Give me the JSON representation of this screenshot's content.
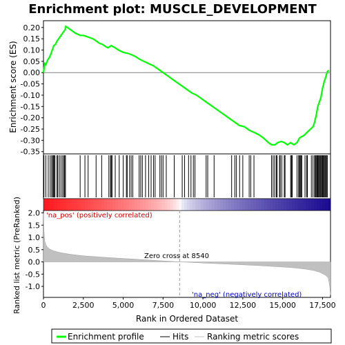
{
  "chart_data": [
    {
      "type": "line",
      "panel": "enrichment",
      "title": "Enrichment plot: MUSCLE_DEVELOPMENT",
      "ylabel": "Enrichment score (ES)",
      "ylim": [
        -0.36,
        0.23
      ],
      "yticks": [
        "0.20",
        "0.15",
        "0.10",
        "0.05",
        "0.00",
        "-0.05",
        "-0.10",
        "-0.15",
        "-0.20",
        "-0.25",
        "-0.30",
        "-0.35"
      ],
      "ytick_values": [
        0.2,
        0.15,
        0.1,
        0.05,
        0.0,
        -0.05,
        -0.1,
        -0.15,
        -0.2,
        -0.25,
        -0.3,
        -0.35
      ],
      "xlim": [
        0,
        18000
      ],
      "line_color": "#00ff00",
      "series": [
        {
          "name": "Enrichment profile",
          "x": [
            0,
            80,
            150,
            250,
            350,
            450,
            550,
            650,
            750,
            850,
            950,
            1050,
            1150,
            1250,
            1350,
            1400,
            1500,
            1700,
            2000,
            2300,
            2500,
            2700,
            2900,
            3100,
            3300,
            3500,
            3700,
            3900,
            4050,
            4150,
            4250,
            4350,
            4500,
            4700,
            5000,
            5300,
            5500,
            5800,
            6000,
            6300,
            6600,
            6900,
            7200,
            7500,
            7800,
            8100,
            8400,
            8700,
            9000,
            9300,
            9600,
            9900,
            10200,
            10500,
            10800,
            11100,
            11400,
            11700,
            12000,
            12300,
            12600,
            12900,
            13200,
            13500,
            13800,
            14100,
            14300,
            14500,
            14700,
            14900,
            15100,
            15300,
            15500,
            15700,
            15900,
            16050,
            16150,
            16300,
            16450,
            16600,
            16750,
            16900,
            17000,
            17100,
            17200,
            17300,
            17400,
            17500,
            17600,
            17700,
            17800,
            17900
          ],
          "y": [
            0.0,
            0.04,
            0.035,
            0.055,
            0.065,
            0.08,
            0.1,
            0.12,
            0.125,
            0.14,
            0.15,
            0.16,
            0.17,
            0.18,
            0.19,
            0.205,
            0.2,
            0.19,
            0.175,
            0.165,
            0.165,
            0.16,
            0.155,
            0.15,
            0.14,
            0.13,
            0.125,
            0.115,
            0.11,
            0.115,
            0.12,
            0.115,
            0.11,
            0.1,
            0.09,
            0.085,
            0.08,
            0.07,
            0.06,
            0.05,
            0.04,
            0.03,
            0.015,
            0.0,
            -0.015,
            -0.03,
            -0.045,
            -0.06,
            -0.075,
            -0.09,
            -0.1,
            -0.115,
            -0.13,
            -0.145,
            -0.16,
            -0.175,
            -0.19,
            -0.205,
            -0.22,
            -0.235,
            -0.24,
            -0.255,
            -0.265,
            -0.275,
            -0.29,
            -0.31,
            -0.32,
            -0.32,
            -0.31,
            -0.305,
            -0.31,
            -0.32,
            -0.31,
            -0.32,
            -0.31,
            -0.29,
            -0.285,
            -0.28,
            -0.27,
            -0.26,
            -0.25,
            -0.24,
            -0.22,
            -0.19,
            -0.15,
            -0.13,
            -0.11,
            -0.07,
            -0.04,
            -0.02,
            0.005,
            0.01
          ]
        }
      ]
    },
    {
      "type": "rug",
      "panel": "hits",
      "series": [
        {
          "name": "Hits",
          "x": [
            30,
            150,
            300,
            420,
            510,
            580,
            620,
            680,
            720,
            850,
            900,
            1000,
            1100,
            1200,
            1280,
            1330,
            1380,
            2300,
            2600,
            2800,
            3300,
            3650,
            4100,
            4200,
            4250,
            4300,
            4500,
            4750,
            5000,
            5200,
            5250,
            5400,
            5500,
            5600,
            6000,
            6100,
            6200,
            6400,
            6600,
            6750,
            6900,
            7000,
            7300,
            7400,
            7500,
            7700,
            8200,
            8700,
            8850,
            9100,
            9250,
            9400,
            9500,
            10200,
            10300,
            10700,
            11800,
            12000,
            12100,
            12300,
            12500,
            12900,
            13000,
            13200,
            14300,
            14400,
            14500,
            14600,
            14650,
            14800,
            14850,
            14950,
            15100,
            15150,
            15500,
            15550,
            15600,
            15900,
            16000,
            16050,
            16100,
            16150,
            16200,
            16400,
            16500,
            16550,
            16800,
            16900,
            17000,
            17050,
            17100,
            17150,
            17200,
            17250,
            17300,
            17350,
            17400,
            17450,
            17500,
            17550,
            17600,
            17650,
            17700,
            17750,
            17800
          ]
        }
      ]
    },
    {
      "type": "area",
      "panel": "ranked-metric",
      "ylabel": "Ranked list metric (PreRanked)",
      "xlabel": "Rank in Ordered Dataset",
      "ylim": [
        -1.45,
        2.1
      ],
      "yticks": [
        "2.0",
        "1.5",
        "1.0",
        "0.5",
        "0.0",
        "-0.5",
        "-1.0"
      ],
      "ytick_values": [
        2.0,
        1.5,
        1.0,
        0.5,
        0.0,
        -0.5,
        -1.0
      ],
      "xticks": [
        "0",
        "2,500",
        "5,000",
        "7,500",
        "10,000",
        "12,500",
        "15,000",
        "17,500"
      ],
      "xtick_values": [
        0,
        2500,
        5000,
        7500,
        10000,
        12500,
        15000,
        17500
      ],
      "series": [
        {
          "name": "Ranking metric scores",
          "x": [
            0,
            30,
            80,
            150,
            250,
            400,
            600,
            900,
            1300,
            1800,
            2500,
            3500,
            4500,
            5500,
            6500,
            7500,
            8540,
            9500,
            10500,
            11500,
            12500,
            13500,
            14500,
            15500,
            16000,
            16500,
            17000,
            17300,
            17500,
            17700,
            17850,
            17900,
            17950,
            18000
          ],
          "y": [
            2.0,
            1.3,
            0.85,
            0.7,
            0.6,
            0.52,
            0.46,
            0.4,
            0.35,
            0.3,
            0.25,
            0.2,
            0.16,
            0.12,
            0.08,
            0.04,
            0.0,
            -0.03,
            -0.06,
            -0.09,
            -0.12,
            -0.15,
            -0.19,
            -0.23,
            -0.26,
            -0.3,
            -0.36,
            -0.42,
            -0.48,
            -0.55,
            -0.65,
            -0.8,
            -1.0,
            -1.35
          ]
        }
      ],
      "annotations": {
        "zero_cross": "Zero cross at 8540",
        "zero_cross_x": 8540,
        "pos_label": "'na_pos' (positively correlated)",
        "neg_label": "'na_neg' (negatively correlated)"
      }
    }
  ],
  "legend": {
    "items": [
      {
        "label": "Enrichment profile",
        "color": "#00ff00"
      },
      {
        "label": "Hits",
        "color": "#000000"
      },
      {
        "label": "Ranking metric scores",
        "color": "#c0c0c0"
      }
    ]
  },
  "colors": {
    "profile": "#00ff00",
    "pos_text": "#cc0000",
    "neg_text": "#0000cc",
    "metric_fill": "#c0c0c0"
  }
}
